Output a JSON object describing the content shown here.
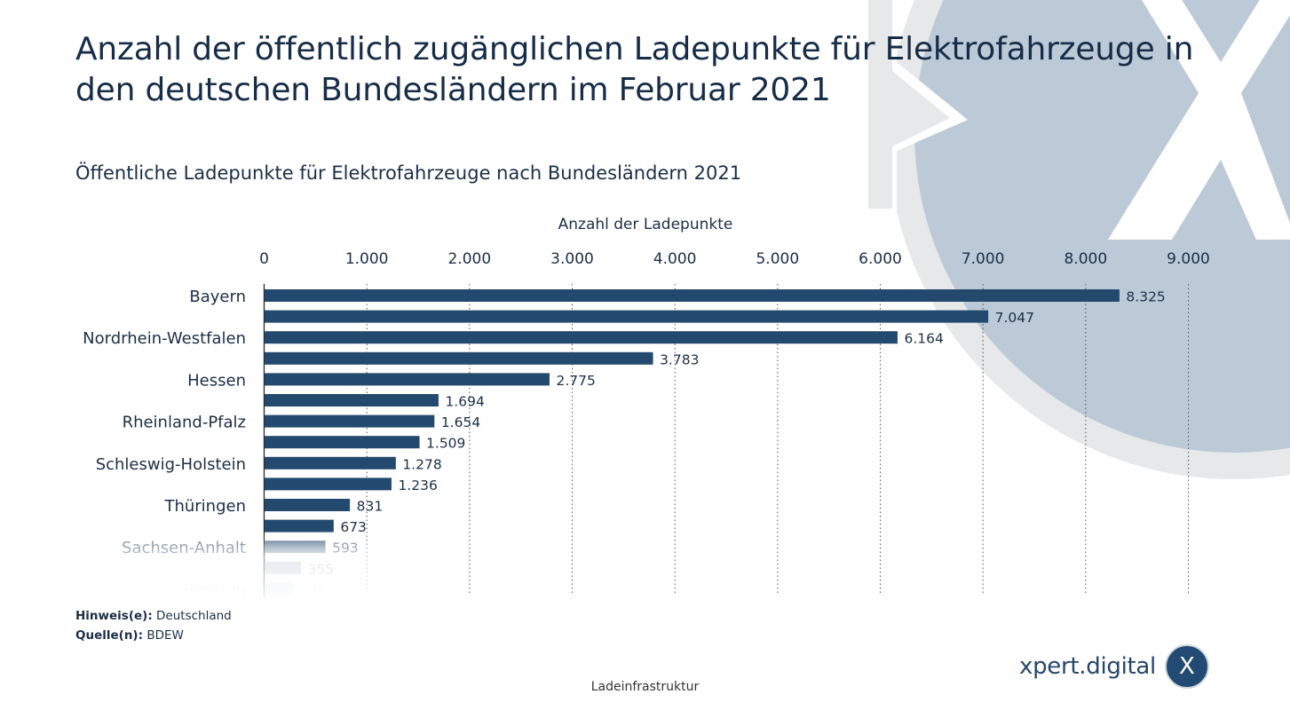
{
  "header": {
    "title": "Anzahl der öffentlich zugänglichen Ladepunkte für Elektrofahrzeuge in den deutschen Bundesländern im Februar 2021",
    "subtitle": "Öffentliche Ladepunkte für Elektrofahrzeuge nach Bundesländern 2021"
  },
  "notes": {
    "hint_label": "Hinweis(e):",
    "hint_value": "Deutschland",
    "source_label": "Quelle(n):",
    "source_value": "BDEW"
  },
  "footer": {
    "caption": "Ladeinfrastruktur"
  },
  "brand": {
    "name": "xpert.digital",
    "logo_letter": "X"
  },
  "colors": {
    "bar": "#234a6e",
    "text": "#1b2f47",
    "watermark": "#bccad7",
    "watermark_ring": "#e6e8ea"
  },
  "chart_data": {
    "type": "bar",
    "orientation": "horizontal",
    "title": "Öffentliche Ladepunkte für Elektrofahrzeuge nach Bundesländern 2021",
    "xlabel": "Anzahl der Ladepunkte",
    "ylabel": "",
    "xlim": [
      0,
      9000
    ],
    "xticks": [
      0,
      1000,
      2000,
      3000,
      4000,
      5000,
      6000,
      7000,
      8000,
      9000
    ],
    "xtick_labels": [
      "0",
      "1.000",
      "2.000",
      "3.000",
      "4.000",
      "5.000",
      "6.000",
      "7.000",
      "8.000",
      "9.000"
    ],
    "grid": "vertical-dotted",
    "categories": [
      "Bayern",
      "",
      "Nordrhein-Westfalen",
      "",
      "Hessen",
      "",
      "Rheinland-Pfalz",
      "",
      "Schleswig-Holstein",
      "",
      "Thüringen",
      "",
      "Sachsen-Anhalt",
      "",
      "Bremen"
    ],
    "values": [
      8325,
      7047,
      6164,
      3783,
      2775,
      1694,
      1654,
      1509,
      1278,
      1236,
      831,
      673,
      593,
      355,
      281
    ],
    "value_labels": [
      "8.325",
      "7.047",
      "6.164",
      "3.783",
      "2.775",
      "1.694",
      "1.654",
      "1.509",
      "1.278",
      "1.236",
      "831",
      "673",
      "593",
      "355",
      "281"
    ]
  }
}
